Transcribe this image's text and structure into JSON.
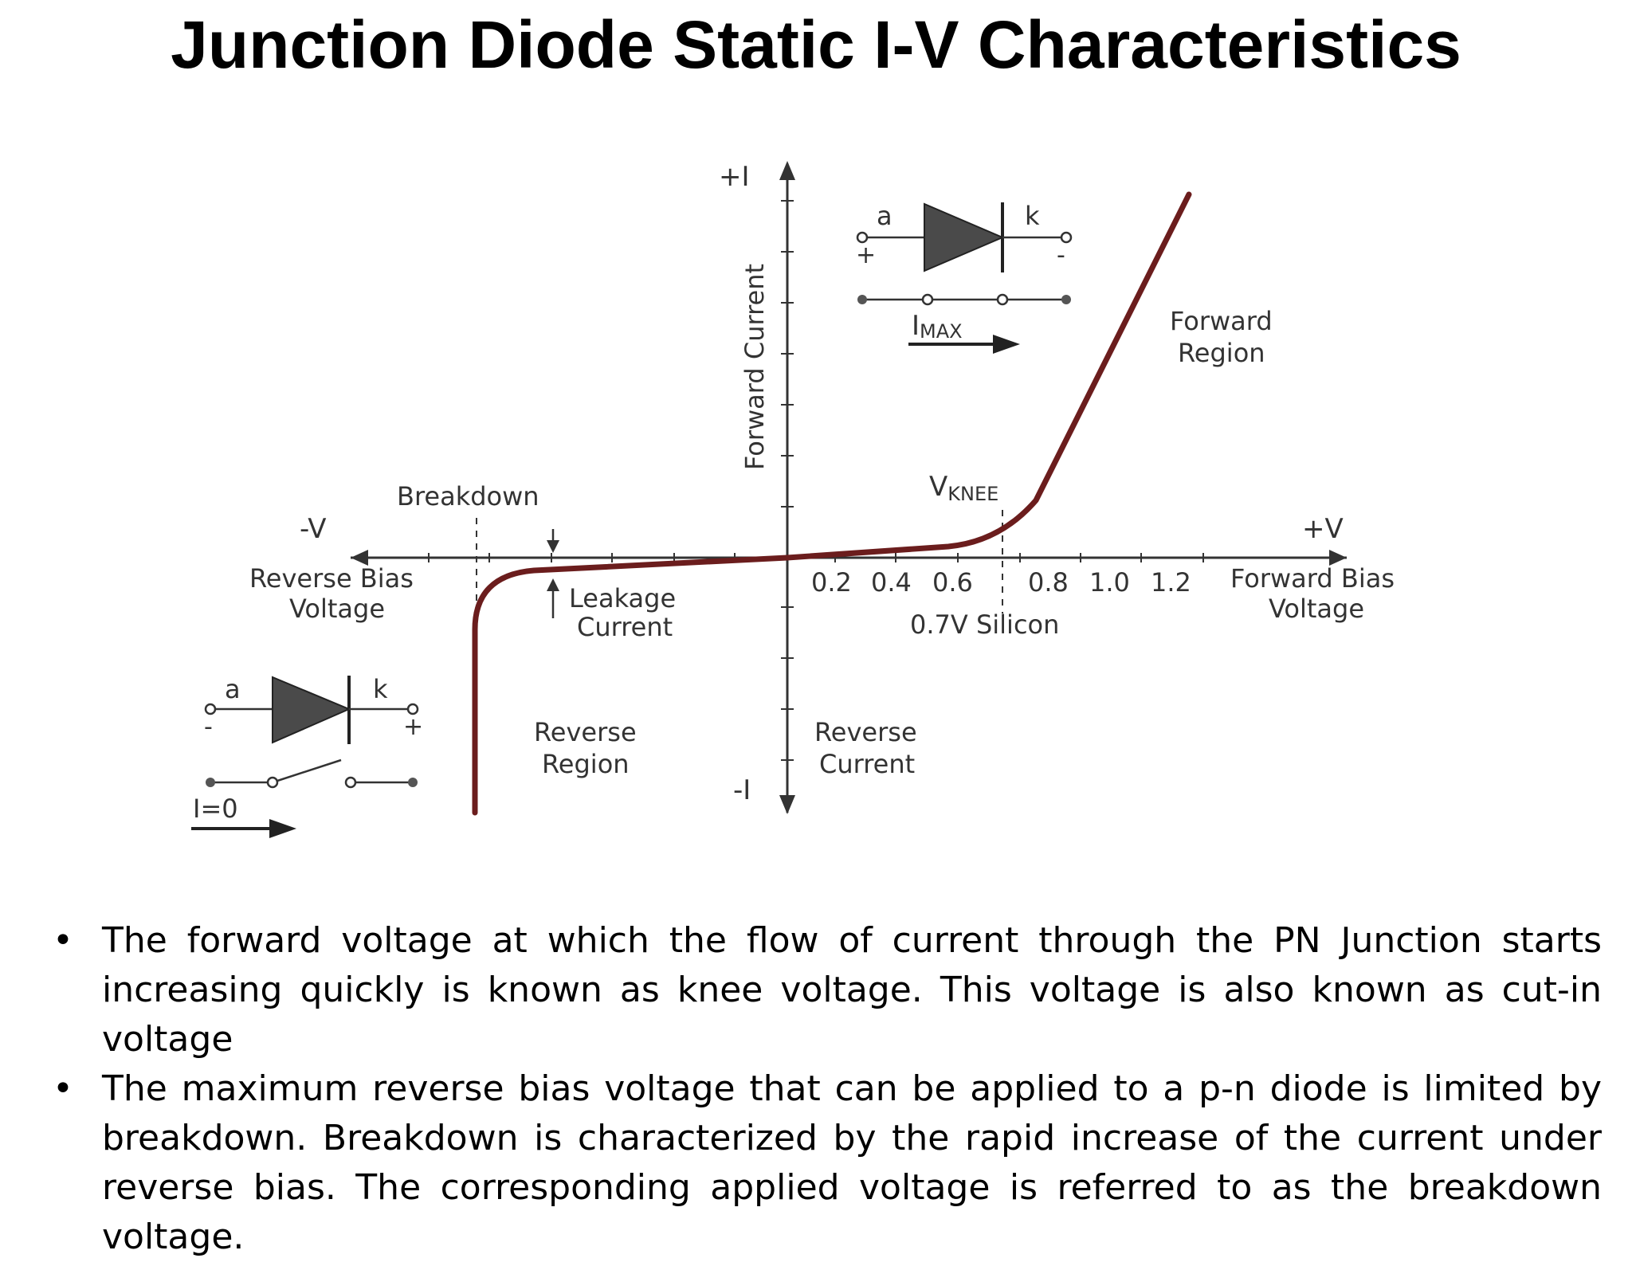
{
  "title": "Junction Diode Static I-V Characteristics",
  "diagram": {
    "axes": {
      "pos_i": "+I",
      "neg_i": "-I",
      "neg_v": "-V",
      "pos_v": "+V",
      "y_label": "Forward Current"
    },
    "ticks": [
      "0.2",
      "0.4",
      "0.6",
      "0.8",
      "1.0",
      "1.2"
    ],
    "labels": {
      "breakdown": "Breakdown",
      "reverse_bias_1": "Reverse Bias",
      "reverse_bias_2": "Voltage",
      "leakage_1": "Leakage",
      "leakage_2": "Current",
      "vknee_v": "V",
      "vknee_sub": "KNEE",
      "silicon": "0.7V Silicon",
      "forward_bias_1": "Forward Bias",
      "forward_bias_2": "Voltage",
      "forward_region_1": "Forward",
      "forward_region_2": "Region",
      "reverse_region_1": "Reverse",
      "reverse_region_2": "Region",
      "reverse_current_1": "Reverse",
      "reverse_current_2": "Current"
    },
    "forward_circuit": {
      "anode": "a",
      "cathode": "k",
      "plus": "+",
      "minus": "-",
      "imax_i": "I",
      "imax_sub": "MAX"
    },
    "reverse_circuit": {
      "anode": "a",
      "cathode": "k",
      "minus": "-",
      "plus": "+",
      "current": "I=0"
    },
    "colors": {
      "curve": "#6b1d1d",
      "axis": "#333333",
      "diode": "#4a4a4a"
    }
  },
  "bullets": [
    "The forward voltage at which the flow of current through the PN Junction starts increasing quickly is known as knee voltage. This voltage is also known as cut-in voltage",
    "The maximum reverse bias voltage that can be applied to a p-n diode is limited by breakdown. Breakdown is characterized by the rapid increase of the current under reverse bias. The corresponding applied voltage is referred to as the breakdown voltage."
  ]
}
